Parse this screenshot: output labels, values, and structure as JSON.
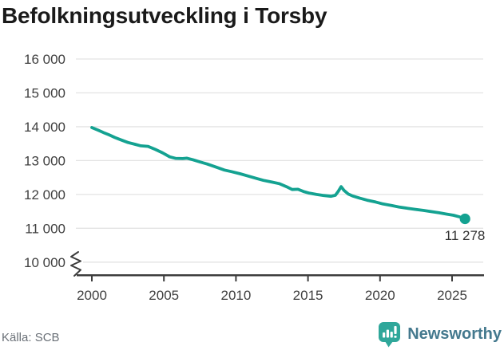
{
  "title": "Befolkningsutveckling i Torsby",
  "source": "Källa: SCB",
  "brand": {
    "name": "Newsworthy"
  },
  "colors": {
    "line": "#14A291",
    "grid": "#E3E3E3",
    "axis": "#3D3D3D",
    "tick_text": "#3F3F3F",
    "title_text": "#1A1A1A",
    "source_text": "#6A7077",
    "brand_text": "#44798E",
    "brand_icon": "#2FA79A",
    "annotation_text": "#333333"
  },
  "chart_data": {
    "type": "line",
    "title": "Befolkningsutveckling i Torsby",
    "xlabel": "",
    "ylabel": "",
    "grid": "horizontal",
    "legend": "none",
    "x_tick_values": [
      2000,
      2005,
      2010,
      2015,
      2020,
      2025
    ],
    "x_tick_labels": [
      "2000",
      "2005",
      "2010",
      "2015",
      "2020",
      "2025"
    ],
    "y_tick_values": [
      16000,
      15000,
      14000,
      13000,
      12000,
      11000,
      10000
    ],
    "y_tick_labels": [
      "16 000",
      "15 000",
      "14 000",
      "13 000",
      "12 000",
      "11 000",
      "10 000"
    ],
    "ylim_shown": [
      10000,
      16000
    ],
    "xlim": [
      1999,
      2027.3
    ],
    "axis_break_at_bottom": true,
    "series": [
      {
        "name": "Folkmängd",
        "color": "#14A291",
        "points": [
          [
            2000.0,
            13975
          ],
          [
            2000.4,
            13905
          ],
          [
            2000.8,
            13830
          ],
          [
            2001.2,
            13760
          ],
          [
            2001.6,
            13680
          ],
          [
            2002.0,
            13615
          ],
          [
            2002.5,
            13535
          ],
          [
            2003.0,
            13480
          ],
          [
            2003.4,
            13435
          ],
          [
            2003.9,
            13420
          ],
          [
            2004.4,
            13330
          ],
          [
            2004.9,
            13230
          ],
          [
            2005.4,
            13110
          ],
          [
            2005.8,
            13065
          ],
          [
            2006.3,
            13060
          ],
          [
            2006.6,
            13070
          ],
          [
            2007.0,
            13025
          ],
          [
            2007.5,
            12960
          ],
          [
            2008.0,
            12898
          ],
          [
            2008.6,
            12812
          ],
          [
            2009.2,
            12720
          ],
          [
            2009.7,
            12672
          ],
          [
            2010.3,
            12610
          ],
          [
            2010.8,
            12548
          ],
          [
            2011.4,
            12475
          ],
          [
            2011.9,
            12415
          ],
          [
            2012.5,
            12365
          ],
          [
            2013.0,
            12320
          ],
          [
            2013.5,
            12230
          ],
          [
            2013.9,
            12145
          ],
          [
            2014.3,
            12152
          ],
          [
            2014.7,
            12085
          ],
          [
            2015.1,
            12038
          ],
          [
            2015.6,
            12000
          ],
          [
            2016.1,
            11968
          ],
          [
            2016.6,
            11945
          ],
          [
            2016.9,
            11975
          ],
          [
            2017.1,
            12090
          ],
          [
            2017.3,
            12230
          ],
          [
            2017.5,
            12120
          ],
          [
            2017.8,
            12010
          ],
          [
            2018.1,
            11955
          ],
          [
            2018.6,
            11888
          ],
          [
            2019.1,
            11830
          ],
          [
            2019.7,
            11775
          ],
          [
            2020.2,
            11718
          ],
          [
            2020.8,
            11672
          ],
          [
            2021.3,
            11630
          ],
          [
            2021.9,
            11592
          ],
          [
            2022.4,
            11562
          ],
          [
            2023.0,
            11528
          ],
          [
            2023.5,
            11495
          ],
          [
            2024.1,
            11458
          ],
          [
            2024.6,
            11420
          ],
          [
            2025.1,
            11385
          ],
          [
            2025.5,
            11340
          ],
          [
            2025.9,
            11278
          ]
        ]
      }
    ],
    "annotation": {
      "text": "11 278",
      "x": 2025.9,
      "value": 11278
    }
  }
}
